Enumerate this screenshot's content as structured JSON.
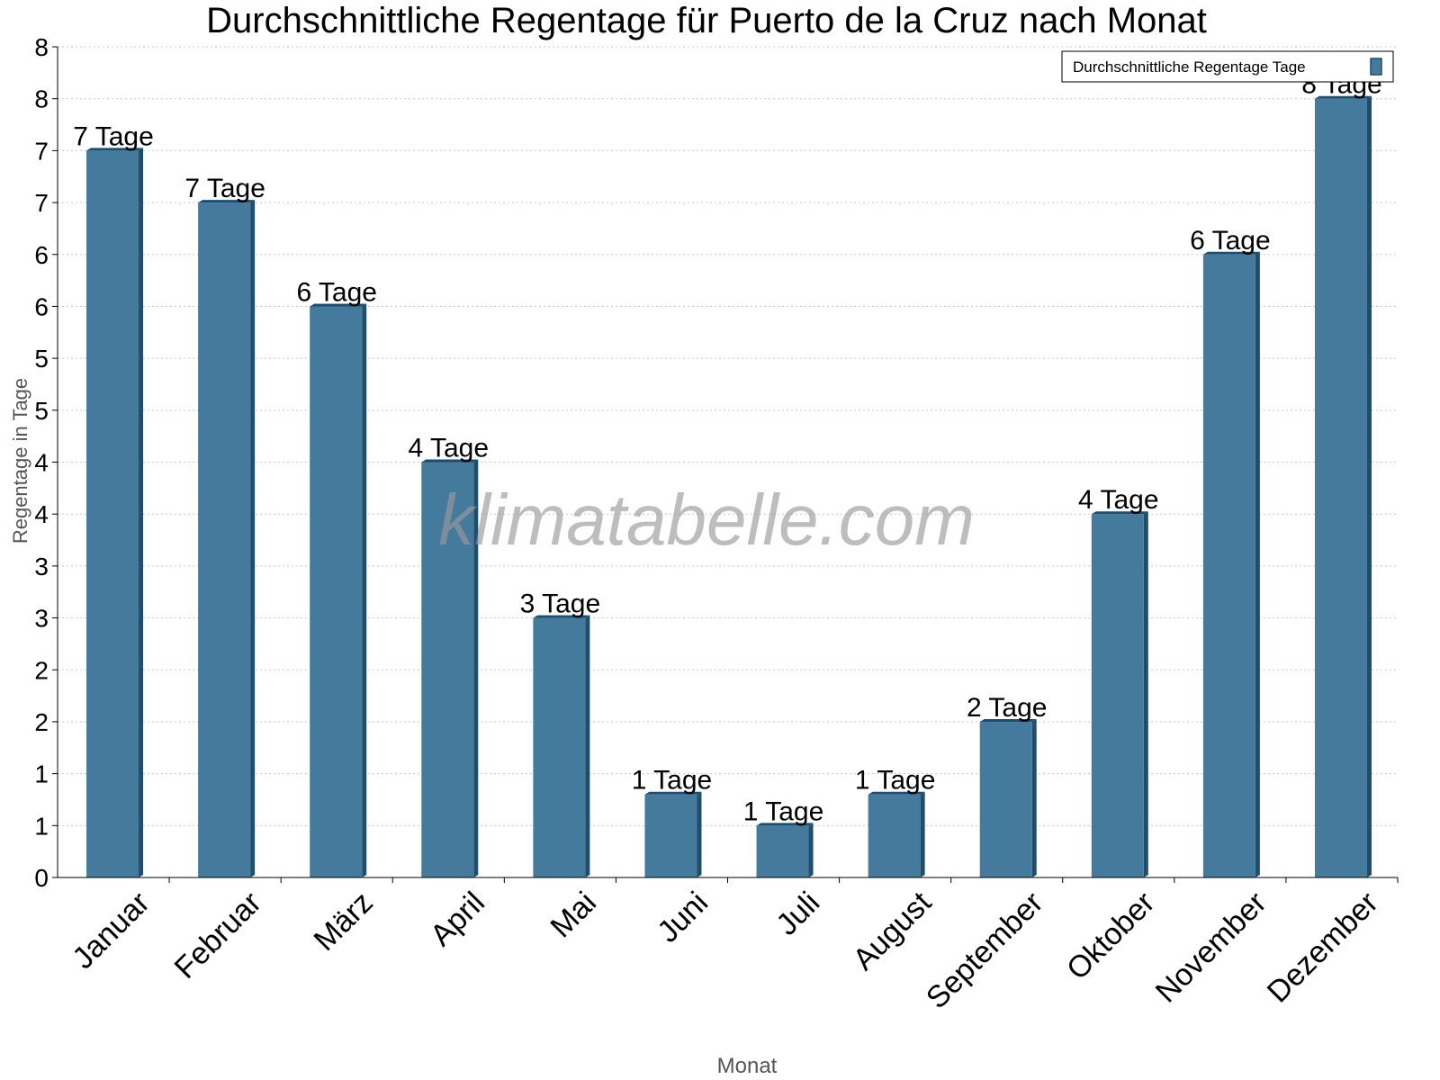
{
  "chart_data": {
    "type": "bar",
    "title": "Durchschnittliche Regentage für Puerto de la Cruz nach Monat",
    "xlabel": "Monat",
    "ylabel": "Regentage in Tage",
    "ylim": [
      0,
      8
    ],
    "y_tick_values": [
      0,
      0.5,
      1,
      1.5,
      2,
      2.5,
      3,
      3.5,
      4,
      4.5,
      5,
      5.5,
      6,
      6.5,
      7,
      7.5,
      8
    ],
    "y_tick_labels": [
      "0",
      "1",
      "1",
      "2",
      "2",
      "3",
      "3",
      "4",
      "4",
      "5",
      "5",
      "6",
      "6",
      "7",
      "7",
      "8",
      "8"
    ],
    "grid": true,
    "legend": {
      "position": "top-right",
      "entries": [
        "Durchschnittliche Regentage Tage"
      ]
    },
    "categories": [
      "Januar",
      "Februar",
      "März",
      "April",
      "Mai",
      "Juni",
      "Juli",
      "August",
      "September",
      "Oktober",
      "November",
      "Dezember"
    ],
    "series": [
      {
        "name": "Durchschnittliche Regentage Tage",
        "values": [
          7,
          6.5,
          5.5,
          4,
          2.5,
          0.8,
          0.5,
          0.8,
          1.5,
          3.5,
          6,
          7.5
        ],
        "data_labels": [
          "7 Tage",
          "7 Tage",
          "6 Tage",
          "4 Tage",
          "3 Tage",
          "1 Tage",
          "1 Tage",
          "1 Tage",
          "2 Tage",
          "4 Tage",
          "6 Tage",
          "8 Tage"
        ],
        "color": "#447a9c",
        "side_color": "#1d4e6e"
      }
    ],
    "watermark": "klimatabelle.com"
  }
}
